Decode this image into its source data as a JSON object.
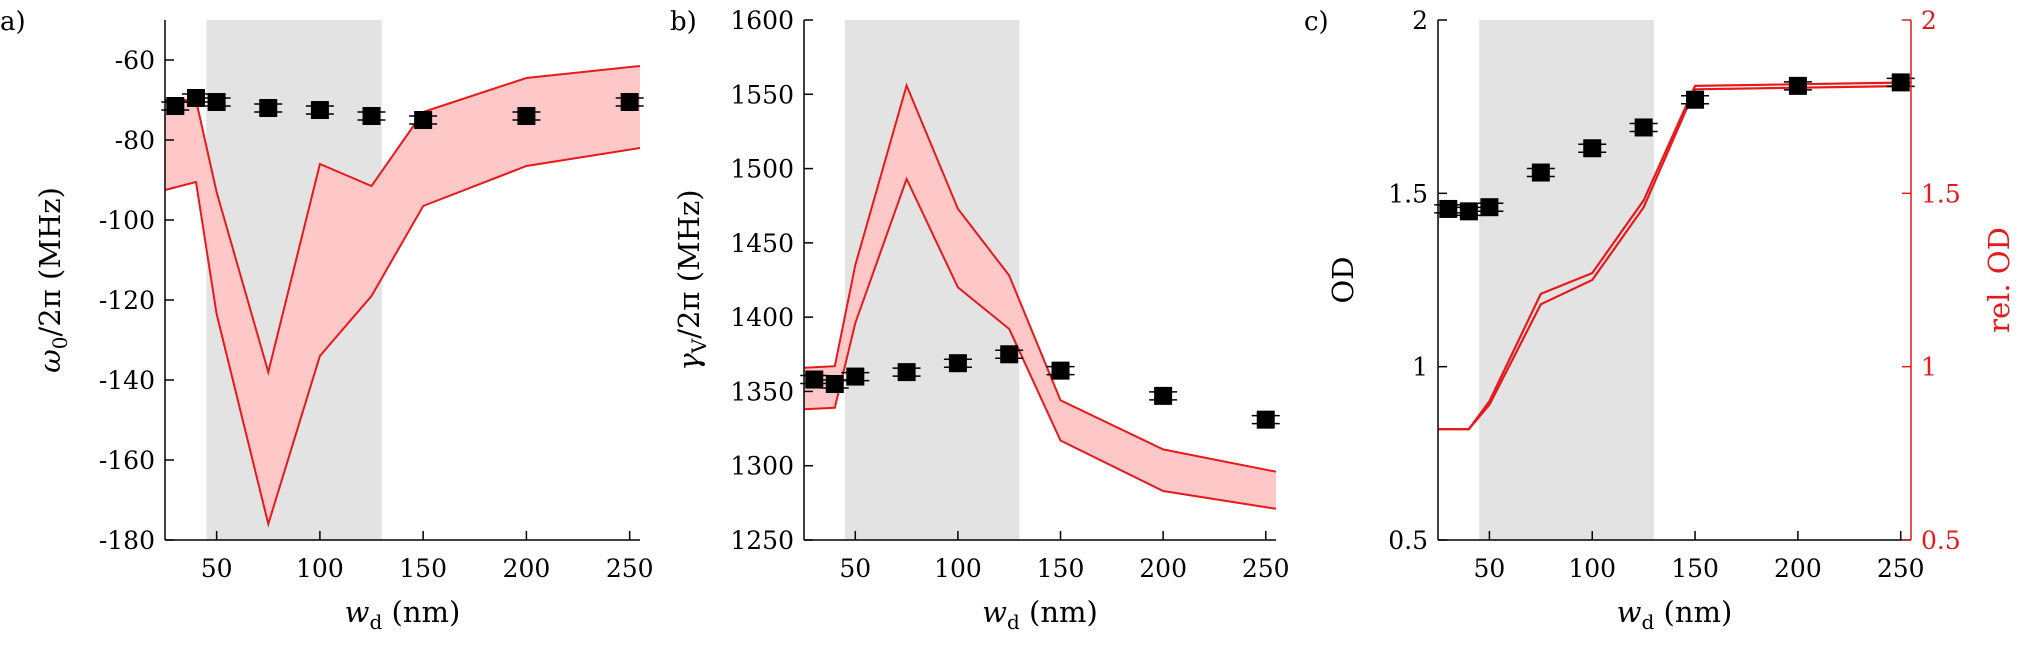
{
  "chart_data": [
    {
      "panel": "a)",
      "type": "scatter",
      "ylabel_parts": [
        "ω",
        "0",
        "/2π (MHz)"
      ],
      "xlabel_parts": [
        "w",
        "d",
        " (nm)"
      ],
      "xlim": [
        25,
        255
      ],
      "ylim": [
        -180,
        -50
      ],
      "xticks": [
        50,
        100,
        150,
        200,
        250
      ],
      "xtick_labels": [
        "50",
        "100",
        "150",
        "200",
        "250"
      ],
      "yticks": [
        -60,
        -80,
        -100,
        -120,
        -140,
        -160,
        -180
      ],
      "ytick_labels": [
        "-60",
        "-80",
        "-100",
        "-120",
        "-140",
        "-160",
        "-180"
      ],
      "shaded_x_region": [
        45,
        130
      ],
      "points": {
        "x": [
          30,
          40,
          50,
          75,
          100,
          125,
          150,
          200,
          250
        ],
        "y": [
          -71.5,
          -69.5,
          -70.5,
          -72,
          -72.5,
          -74,
          -75,
          -74,
          -70.5
        ]
      },
      "band": {
        "x": [
          25,
          40,
          50,
          75,
          100,
          125,
          150,
          200,
          255
        ],
        "upper": [
          -70,
          -70,
          -93,
          -138,
          -86,
          -91.5,
          -73,
          -64.5,
          -61.5
        ],
        "lower": [
          -92.5,
          -90.5,
          -123.5,
          -176,
          -134,
          -119,
          -96.5,
          -86.5,
          -82
        ]
      }
    },
    {
      "panel": "b)",
      "type": "scatter",
      "ylabel_parts": [
        "γ",
        "V",
        "/2π (MHz)"
      ],
      "xlabel_parts": [
        "w",
        "d",
        " (nm)"
      ],
      "xlim": [
        25,
        255
      ],
      "ylim": [
        1250,
        1600
      ],
      "xticks": [
        50,
        100,
        150,
        200,
        250
      ],
      "xtick_labels": [
        "50",
        "100",
        "150",
        "200",
        "250"
      ],
      "yticks": [
        1250,
        1300,
        1350,
        1400,
        1450,
        1500,
        1550,
        1600
      ],
      "ytick_labels": [
        "1250",
        "1300",
        "1350",
        "1400",
        "1450",
        "1500",
        "1550",
        "1600"
      ],
      "shaded_x_region": [
        45,
        130
      ],
      "points": {
        "x": [
          30,
          40,
          50,
          75,
          100,
          125,
          150,
          200,
          250
        ],
        "y": [
          1358,
          1355,
          1360,
          1363,
          1369,
          1375,
          1364,
          1347,
          1331
        ]
      },
      "band": {
        "x": [
          25,
          40,
          50,
          75,
          100,
          125,
          150,
          200,
          255
        ],
        "upper": [
          1366,
          1367,
          1435,
          1556,
          1473,
          1428,
          1344,
          1311,
          1296
        ],
        "lower": [
          1338,
          1339,
          1396,
          1493,
          1420,
          1392,
          1317,
          1283,
          1271
        ]
      }
    },
    {
      "panel": "c)",
      "type": "scatter",
      "ylabel": "OD",
      "ylabel_right": "rel. OD",
      "xlabel_parts": [
        "w",
        "d",
        " (nm)"
      ],
      "xlim": [
        25,
        255
      ],
      "ylim": [
        0.5,
        2
      ],
      "ylim_right": [
        0.5,
        2
      ],
      "xticks": [
        50,
        100,
        150,
        200,
        250
      ],
      "xtick_labels": [
        "50",
        "100",
        "150",
        "200",
        "250"
      ],
      "yticks": [
        0.5,
        1,
        1.5,
        2
      ],
      "ytick_labels": [
        "0.5",
        "1",
        "1.5",
        "2"
      ],
      "ytick_labels_right": [
        "0.5",
        "1",
        "1.5",
        "2"
      ],
      "shaded_x_region": [
        45,
        130
      ],
      "points": {
        "x": [
          30,
          40,
          50,
          75,
          100,
          125,
          150,
          200,
          250
        ],
        "y": [
          1.455,
          1.448,
          1.46,
          1.56,
          1.63,
          1.69,
          1.77,
          1.81,
          1.82
        ]
      },
      "lines_right": [
        {
          "x": [
            25,
            40,
            50,
            75,
            100,
            125,
            150,
            255
          ],
          "y": [
            0.82,
            0.82,
            0.9,
            1.21,
            1.27,
            1.48,
            1.81,
            1.82
          ]
        },
        {
          "x": [
            25,
            40,
            50,
            75,
            100,
            125,
            150,
            255
          ],
          "y": [
            0.82,
            0.82,
            0.89,
            1.18,
            1.25,
            1.46,
            1.8,
            1.81
          ]
        }
      ]
    }
  ],
  "colors": {
    "axis": "#000000",
    "marker": "#000000",
    "shade": "#e3e3e3",
    "band_fill": "#ffc8c8",
    "band_line": "#e41a1c",
    "right_axis": "#e41a1c"
  }
}
